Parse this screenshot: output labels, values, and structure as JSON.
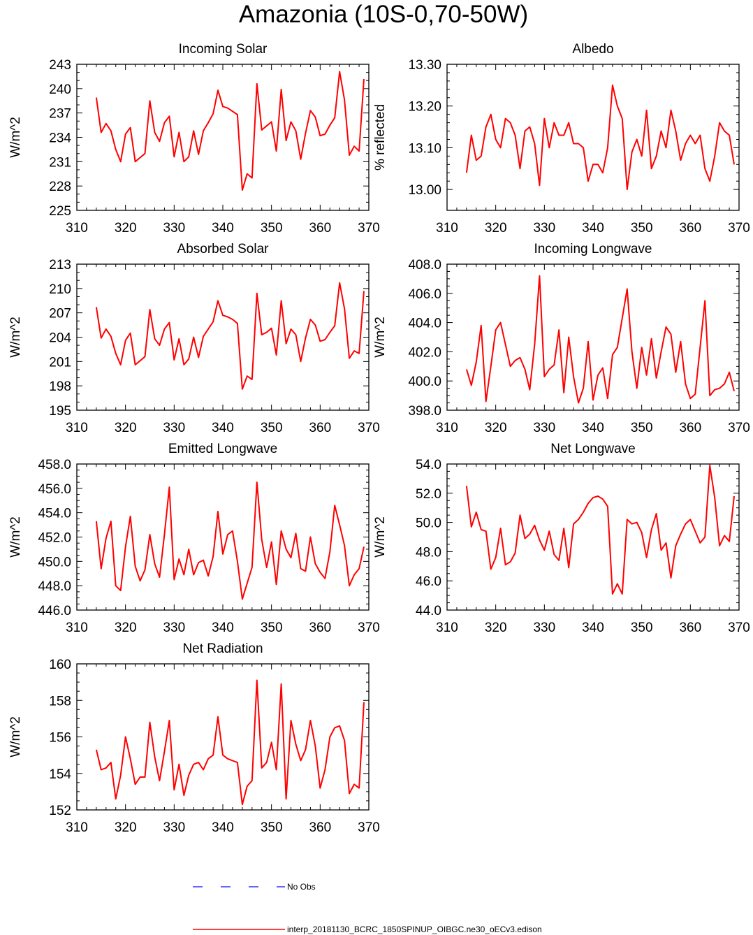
{
  "page": {
    "title": "Amazonia (10S-0,70-50W)"
  },
  "colors": {
    "model_line": "#ff0000",
    "obs_line": "#3333ff",
    "axis": "#000000"
  },
  "legend": {
    "obs_label": "No Obs",
    "model_label": "interp_20181130_BCRC_1850SPINUP_OIBGC.ne30_oECv3.edison"
  },
  "chart_data": [
    {
      "type": "line",
      "title": "Incoming Solar",
      "ylabel": "W/m^2",
      "xlim": [
        310,
        370
      ],
      "ylim": [
        225,
        243
      ],
      "xticks": [
        310,
        320,
        330,
        340,
        350,
        360,
        370
      ],
      "yticks": [
        225,
        228,
        231,
        234,
        237,
        240,
        243
      ],
      "ytick_labels": [
        "225",
        "228",
        "231",
        "234",
        "237",
        "240",
        "243"
      ],
      "series": [
        {
          "x": [
            314,
            315,
            316,
            317,
            318,
            319,
            320,
            321,
            322,
            323,
            324,
            325,
            326,
            327,
            328,
            329,
            330,
            331,
            332,
            333,
            334,
            335,
            336,
            337,
            338,
            339,
            340,
            341,
            342,
            343,
            344,
            345,
            346,
            347,
            348,
            349,
            350,
            351,
            352,
            353,
            354,
            355,
            356,
            357,
            358,
            359,
            360,
            361,
            362,
            363,
            364,
            365,
            366,
            367,
            368,
            369
          ],
          "values": [
            238.9,
            234.6,
            235.7,
            234.8,
            232.5,
            231.0,
            234.4,
            235.2,
            231.0,
            231.5,
            232.0,
            238.5,
            234.6,
            233.5,
            235.8,
            236.6,
            231.6,
            234.6,
            231.0,
            231.6,
            234.8,
            231.9,
            234.8,
            235.8,
            236.9,
            239.8,
            237.8,
            237.6,
            237.2,
            236.8,
            227.5,
            229.5,
            229.0,
            240.6,
            234.9,
            235.4,
            235.9,
            232.3,
            239.9,
            233.6,
            235.9,
            234.8,
            231.3,
            234.5,
            237.3,
            236.5,
            234.2,
            234.4,
            235.5,
            236.4,
            242.1,
            238.6,
            231.8,
            232.9,
            232.3,
            241.2
          ]
        }
      ]
    },
    {
      "type": "line",
      "title": "Albedo",
      "ylabel": "% reflected",
      "xlim": [
        310,
        370
      ],
      "ylim": [
        12.95,
        13.3
      ],
      "xticks": [
        310,
        320,
        330,
        340,
        350,
        360,
        370
      ],
      "yticks": [
        13.0,
        13.1,
        13.2,
        13.3
      ],
      "ytick_labels": [
        "13.00",
        "13.10",
        "13.20",
        "13.30"
      ],
      "series": [
        {
          "x": [
            314,
            315,
            316,
            317,
            318,
            319,
            320,
            321,
            322,
            323,
            324,
            325,
            326,
            327,
            328,
            329,
            330,
            331,
            332,
            333,
            334,
            335,
            336,
            337,
            338,
            339,
            340,
            341,
            342,
            343,
            344,
            345,
            346,
            347,
            348,
            349,
            350,
            351,
            352,
            353,
            354,
            355,
            356,
            357,
            358,
            359,
            360,
            361,
            362,
            363,
            364,
            365,
            366,
            367,
            368,
            369
          ],
          "values": [
            13.04,
            13.13,
            13.07,
            13.08,
            13.15,
            13.18,
            13.12,
            13.1,
            13.17,
            13.16,
            13.13,
            13.05,
            13.14,
            13.15,
            13.11,
            13.01,
            13.17,
            13.1,
            13.16,
            13.13,
            13.13,
            13.16,
            13.11,
            13.11,
            13.1,
            13.02,
            13.06,
            13.06,
            13.04,
            13.1,
            13.25,
            13.2,
            13.17,
            13.0,
            13.09,
            13.12,
            13.08,
            13.19,
            13.05,
            13.08,
            13.14,
            13.1,
            13.19,
            13.14,
            13.07,
            13.11,
            13.13,
            13.11,
            13.13,
            13.05,
            13.02,
            13.08,
            13.16,
            13.14,
            13.13,
            13.06
          ]
        }
      ]
    },
    {
      "type": "line",
      "title": "Absorbed Solar",
      "ylabel": "W/m^2",
      "xlim": [
        310,
        370
      ],
      "ylim": [
        195,
        213
      ],
      "xticks": [
        310,
        320,
        330,
        340,
        350,
        360,
        370
      ],
      "yticks": [
        195,
        198,
        201,
        204,
        207,
        210,
        213
      ],
      "ytick_labels": [
        "195",
        "198",
        "201",
        "204",
        "207",
        "210",
        "213"
      ],
      "series": [
        {
          "x": [
            314,
            315,
            316,
            317,
            318,
            319,
            320,
            321,
            322,
            323,
            324,
            325,
            326,
            327,
            328,
            329,
            330,
            331,
            332,
            333,
            334,
            335,
            336,
            337,
            338,
            339,
            340,
            341,
            342,
            343,
            344,
            345,
            346,
            347,
            348,
            349,
            350,
            351,
            352,
            353,
            354,
            355,
            356,
            357,
            358,
            359,
            360,
            361,
            362,
            363,
            364,
            365,
            366,
            367,
            368,
            369
          ],
          "values": [
            207.7,
            203.9,
            205.0,
            204.1,
            202.0,
            200.6,
            203.6,
            204.5,
            200.6,
            201.1,
            201.6,
            207.4,
            203.8,
            203.0,
            205.0,
            205.8,
            201.2,
            203.8,
            200.6,
            201.3,
            204.0,
            201.5,
            204.1,
            205.0,
            205.9,
            208.5,
            206.7,
            206.5,
            206.2,
            205.7,
            197.6,
            199.2,
            198.8,
            209.4,
            204.3,
            204.6,
            205.1,
            201.8,
            208.5,
            203.2,
            205.0,
            204.3,
            201.0,
            203.9,
            206.2,
            205.5,
            203.5,
            203.7,
            204.6,
            205.4,
            210.7,
            207.5,
            201.4,
            202.3,
            202.0,
            209.7
          ]
        }
      ]
    },
    {
      "type": "line",
      "title": "Incoming Longwave",
      "ylabel": "W/m^2",
      "xlim": [
        310,
        370
      ],
      "ylim": [
        398.0,
        408.0
      ],
      "xticks": [
        310,
        320,
        330,
        340,
        350,
        360,
        370
      ],
      "yticks": [
        398.0,
        400.0,
        402.0,
        404.0,
        406.0,
        408.0
      ],
      "ytick_labels": [
        "398.0",
        "400.0",
        "402.0",
        "404.0",
        "406.0",
        "408.0"
      ],
      "series": [
        {
          "x": [
            314,
            315,
            316,
            317,
            318,
            319,
            320,
            321,
            322,
            323,
            324,
            325,
            326,
            327,
            328,
            329,
            330,
            331,
            332,
            333,
            334,
            335,
            336,
            337,
            338,
            339,
            340,
            341,
            342,
            343,
            344,
            345,
            346,
            347,
            348,
            349,
            350,
            351,
            352,
            353,
            354,
            355,
            356,
            357,
            358,
            359,
            360,
            361,
            362,
            363,
            364,
            365,
            366,
            367,
            368,
            369
          ],
          "values": [
            400.8,
            399.7,
            401.3,
            403.8,
            398.6,
            401.0,
            403.5,
            404.0,
            402.5,
            401.0,
            401.4,
            401.6,
            400.8,
            399.4,
            402.5,
            407.2,
            400.3,
            400.8,
            401.1,
            403.5,
            399.2,
            403.0,
            400.3,
            398.5,
            399.5,
            402.7,
            398.7,
            400.4,
            400.9,
            398.8,
            401.8,
            402.3,
            404.3,
            406.3,
            402.0,
            399.5,
            402.3,
            400.4,
            402.9,
            400.2,
            402.0,
            403.7,
            403.2,
            400.6,
            402.7,
            399.8,
            398.8,
            399.1,
            402.3,
            405.5,
            399.0,
            399.4,
            399.5,
            399.8,
            400.6,
            399.3
          ]
        }
      ]
    },
    {
      "type": "line",
      "title": "Emitted Longwave",
      "ylabel": "W/m^2",
      "xlim": [
        310,
        370
      ],
      "ylim": [
        446.0,
        458.0
      ],
      "xticks": [
        310,
        320,
        330,
        340,
        350,
        360,
        370
      ],
      "yticks": [
        446.0,
        448.0,
        450.0,
        452.0,
        454.0,
        456.0,
        458.0
      ],
      "ytick_labels": [
        "446.0",
        "448.0",
        "450.0",
        "452.0",
        "454.0",
        "456.0",
        "458.0"
      ],
      "series": [
        {
          "x": [
            314,
            315,
            316,
            317,
            318,
            319,
            320,
            321,
            322,
            323,
            324,
            325,
            326,
            327,
            328,
            329,
            330,
            331,
            332,
            333,
            334,
            335,
            336,
            337,
            338,
            339,
            340,
            341,
            342,
            343,
            344,
            345,
            346,
            347,
            348,
            349,
            350,
            351,
            352,
            353,
            354,
            355,
            356,
            357,
            358,
            359,
            360,
            361,
            362,
            363,
            364,
            365,
            366,
            367,
            368,
            369
          ],
          "values": [
            453.3,
            449.4,
            451.9,
            453.3,
            448.0,
            447.6,
            451.2,
            453.7,
            449.6,
            448.4,
            449.3,
            452.2,
            449.8,
            448.7,
            452.2,
            456.1,
            448.5,
            450.2,
            448.9,
            451.0,
            448.9,
            449.9,
            450.1,
            448.8,
            450.4,
            454.1,
            450.6,
            452.2,
            452.5,
            450.0,
            446.9,
            448.2,
            449.5,
            456.5,
            451.8,
            449.5,
            451.6,
            448.1,
            452.5,
            451.0,
            450.3,
            452.3,
            449.4,
            449.2,
            452.0,
            449.8,
            449.1,
            448.6,
            450.8,
            454.6,
            453.0,
            451.3,
            448.0,
            448.9,
            449.4,
            451.2
          ]
        }
      ]
    },
    {
      "type": "line",
      "title": "Net Longwave",
      "ylabel": "W/m^2",
      "xlim": [
        310,
        370
      ],
      "ylim": [
        44.0,
        54.0
      ],
      "xticks": [
        310,
        320,
        330,
        340,
        350,
        360,
        370
      ],
      "yticks": [
        44.0,
        46.0,
        48.0,
        50.0,
        52.0,
        54.0
      ],
      "ytick_labels": [
        "44.0",
        "46.0",
        "48.0",
        "50.0",
        "52.0",
        "54.0"
      ],
      "series": [
        {
          "x": [
            314,
            315,
            316,
            317,
            318,
            319,
            320,
            321,
            322,
            323,
            324,
            325,
            326,
            327,
            328,
            329,
            330,
            331,
            332,
            333,
            334,
            335,
            336,
            337,
            338,
            339,
            340,
            341,
            342,
            343,
            344,
            345,
            346,
            347,
            348,
            349,
            350,
            351,
            352,
            353,
            354,
            355,
            356,
            357,
            358,
            359,
            360,
            361,
            362,
            363,
            364,
            365,
            366,
            367,
            368,
            369
          ],
          "values": [
            52.5,
            49.7,
            50.7,
            49.5,
            49.4,
            46.8,
            47.6,
            49.6,
            47.1,
            47.3,
            47.9,
            50.5,
            48.9,
            49.2,
            49.8,
            48.8,
            48.1,
            49.4,
            47.8,
            47.4,
            49.6,
            46.9,
            49.9,
            50.2,
            50.7,
            51.3,
            51.7,
            51.8,
            51.6,
            51.1,
            45.1,
            45.8,
            45.1,
            50.2,
            49.9,
            50.0,
            49.3,
            47.6,
            49.5,
            50.6,
            48.1,
            48.6,
            46.2,
            48.4,
            49.2,
            49.9,
            50.2,
            49.4,
            48.6,
            49.0,
            53.9,
            51.7,
            48.4,
            49.1,
            48.7,
            51.8
          ]
        }
      ]
    },
    {
      "type": "line",
      "title": "Net Radiation",
      "ylabel": "W/m^2",
      "xlim": [
        310,
        370
      ],
      "ylim": [
        152,
        160
      ],
      "xticks": [
        310,
        320,
        330,
        340,
        350,
        360,
        370
      ],
      "yticks": [
        152,
        154,
        156,
        158,
        160
      ],
      "ytick_labels": [
        "152",
        "154",
        "156",
        "158",
        "160"
      ],
      "series": [
        {
          "x": [
            314,
            315,
            316,
            317,
            318,
            319,
            320,
            321,
            322,
            323,
            324,
            325,
            326,
            327,
            328,
            329,
            330,
            331,
            332,
            333,
            334,
            335,
            336,
            337,
            338,
            339,
            340,
            341,
            342,
            343,
            344,
            345,
            346,
            347,
            348,
            349,
            350,
            351,
            352,
            353,
            354,
            355,
            356,
            357,
            358,
            359,
            360,
            361,
            362,
            363,
            364,
            365,
            366,
            367,
            368,
            369
          ],
          "values": [
            155.3,
            154.2,
            154.3,
            154.6,
            152.6,
            153.9,
            156.0,
            154.8,
            153.4,
            153.8,
            153.8,
            156.8,
            154.9,
            153.6,
            155.2,
            156.9,
            153.1,
            154.5,
            152.8,
            153.9,
            154.5,
            154.6,
            154.2,
            154.8,
            155.0,
            157.1,
            155.0,
            154.8,
            154.7,
            154.6,
            152.3,
            153.3,
            153.6,
            159.1,
            154.3,
            154.6,
            155.7,
            154.2,
            158.9,
            152.6,
            156.9,
            155.6,
            154.7,
            155.3,
            156.9,
            155.5,
            153.2,
            154.2,
            156.0,
            156.5,
            156.6,
            155.8,
            152.9,
            153.4,
            153.2,
            157.9
          ]
        }
      ]
    }
  ]
}
